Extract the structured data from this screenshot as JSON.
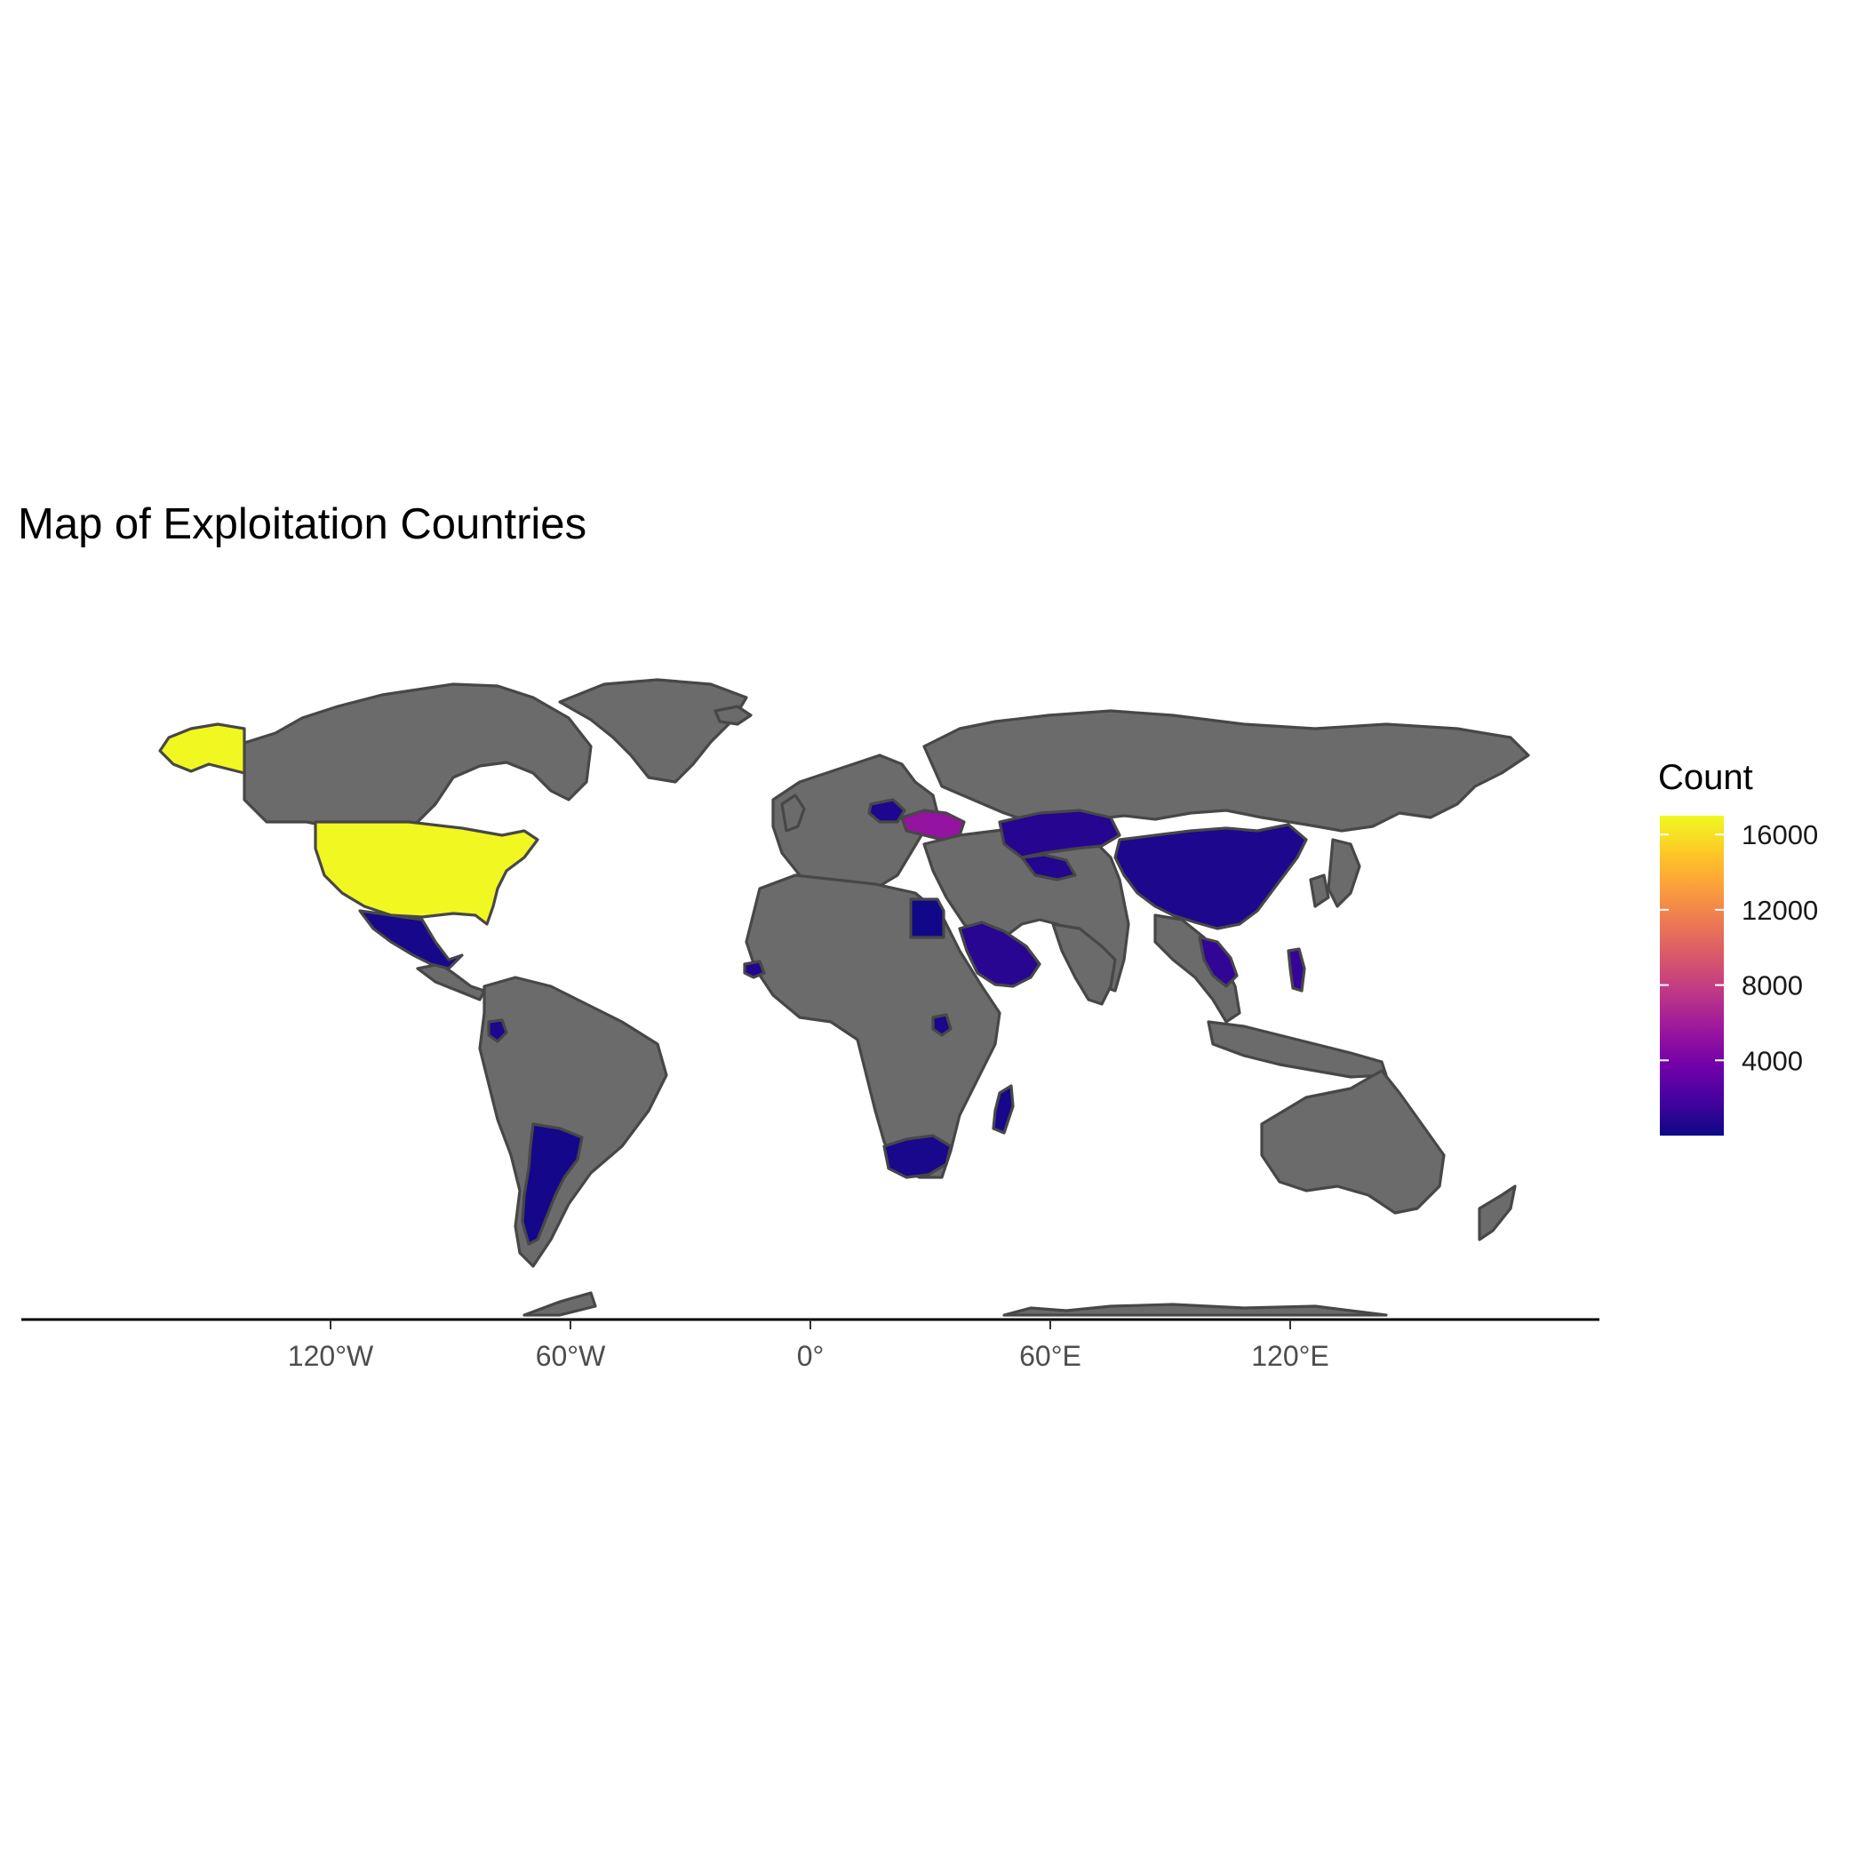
{
  "title": "Map of Exploitation Countries",
  "chart_data": {
    "type": "choropleth",
    "title": "Map of Exploitation Countries",
    "x_axis": {
      "ticks": [
        "120°W",
        "60°W",
        "0°",
        "60°E",
        "120°E"
      ],
      "tick_lon": [
        -120,
        -60,
        0,
        60,
        120
      ]
    },
    "legend": {
      "title": "Count",
      "breaks": [
        16000,
        12000,
        8000,
        4000
      ],
      "break_labels": [
        "16000",
        "12000",
        "8000",
        "4000"
      ],
      "min": 0,
      "max": 17000,
      "palette": "plasma",
      "placement": "right"
    },
    "no_data_color": "#6b6b6b",
    "border_color": "#474747",
    "highlighted": [
      {
        "country": "United States",
        "value": 16900
      },
      {
        "country": "Ukraine",
        "value": 5300
      },
      {
        "country": "Kazakhstan",
        "value": 800
      },
      {
        "country": "China",
        "value": 500
      },
      {
        "country": "Saudi Arabia",
        "value": 900
      },
      {
        "country": "Mexico",
        "value": 300
      },
      {
        "country": "Egypt",
        "value": 100
      },
      {
        "country": "Argentina",
        "value": 250
      },
      {
        "country": "South Africa",
        "value": 400
      },
      {
        "country": "Thailand",
        "value": 1200
      },
      {
        "country": "Poland",
        "value": 600
      },
      {
        "country": "Madagascar",
        "value": 300
      },
      {
        "country": "Uzbekistan",
        "value": 700
      },
      {
        "country": "Philippines",
        "value": 1300
      },
      {
        "country": "Ecuador",
        "value": 500
      },
      {
        "country": "Uganda",
        "value": 400
      },
      {
        "country": "Senegal",
        "value": 700
      }
    ]
  }
}
